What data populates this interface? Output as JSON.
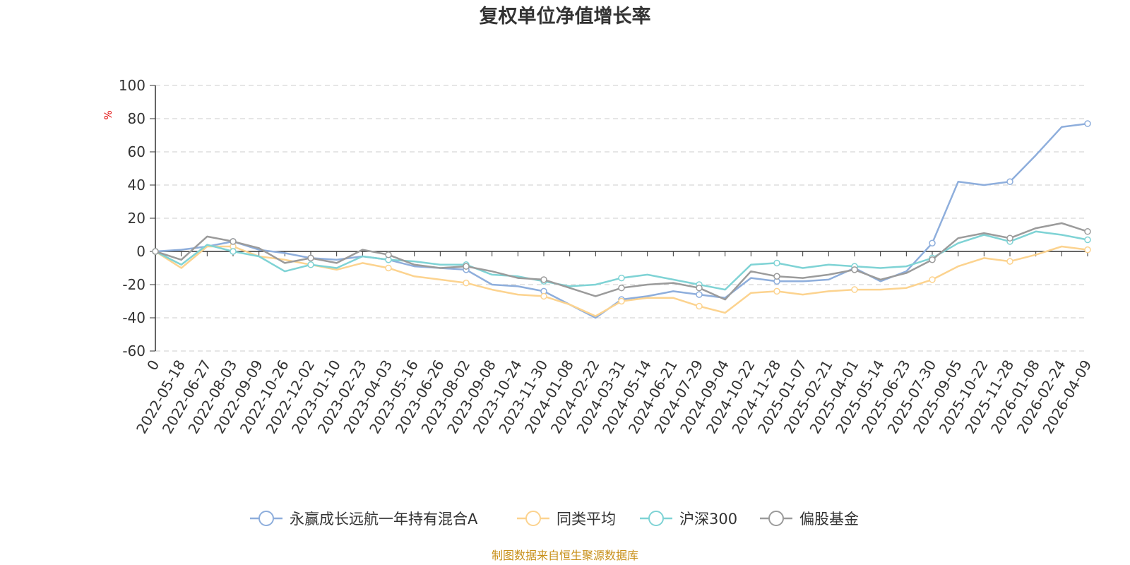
{
  "chart_data": {
    "type": "line",
    "title": "复权单位净值增长率",
    "ylabel": "%",
    "ylim": [
      -60,
      100
    ],
    "yticks": [
      "100",
      "80",
      "60",
      "40",
      "20",
      "0",
      "-20",
      "-40",
      "-60"
    ],
    "grid": true,
    "legend_position": "bottom",
    "x_labels": [
      "0",
      "2022-05-18",
      "2022-06-27",
      "2022-08-03",
      "2022-09-09",
      "2022-10-26",
      "2022-12-02",
      "2023-01-10",
      "2023-02-23",
      "2023-04-03",
      "2023-05-16",
      "2023-06-26",
      "2023-08-02",
      "2023-09-08",
      "2023-10-24",
      "2023-11-30",
      "2024-01-08",
      "2024-02-22",
      "2024-03-31",
      "2024-05-14",
      "2024-06-21",
      "2024-07-29",
      "2024-09-04",
      "2024-10-22",
      "2024-11-28",
      "2025-01-07",
      "2025-02-21",
      "2025-04-01",
      "2025-05-14",
      "2025-06-23",
      "2025-07-30",
      "2025-09-05",
      "2025-10-22",
      "2025-11-28",
      "2026-01-08",
      "2026-02-24",
      "2026-04-09"
    ],
    "series": [
      {
        "name": "永赢成长远航一年持有混合A",
        "color": "#8eaedc",
        "values": [
          0,
          1,
          3,
          6,
          1,
          -1,
          -4,
          -5,
          -3,
          -5,
          -9,
          -10,
          -11,
          -20,
          -21,
          -24,
          -32,
          -40,
          -29,
          -27,
          -24,
          -26,
          -28,
          -16,
          -18,
          -18,
          -17,
          -10,
          -18,
          -12,
          5,
          42,
          40,
          42,
          58,
          75,
          77
        ]
      },
      {
        "name": "同类平均",
        "color": "#fcd38f",
        "values": [
          0,
          -10,
          3,
          3,
          -3,
          -5,
          -8,
          -11,
          -7,
          -10,
          -15,
          -17,
          -19,
          -23,
          -26,
          -27,
          -32,
          -39,
          -30,
          -28,
          -28,
          -33,
          -37,
          -25,
          -24,
          -26,
          -24,
          -23,
          -23,
          -22,
          -17,
          -9,
          -4,
          -6,
          -2,
          3,
          1
        ]
      },
      {
        "name": "沪深300",
        "color": "#7fd3d5",
        "values": [
          0,
          -8,
          4,
          0,
          -3,
          -12,
          -8,
          -10,
          -3,
          -5,
          -6,
          -8,
          -8,
          -14,
          -15,
          -18,
          -21,
          -20,
          -16,
          -14,
          -17,
          -20,
          -23,
          -8,
          -7,
          -10,
          -8,
          -9,
          -10,
          -9,
          -4,
          5,
          10,
          6,
          12,
          10,
          7
        ]
      },
      {
        "name": "偏股基金",
        "color": "#9b9b9b",
        "values": [
          0,
          -5,
          9,
          6,
          2,
          -7,
          -4,
          -7,
          1,
          -2,
          -8,
          -10,
          -9,
          -12,
          -16,
          -17,
          -22,
          -27,
          -22,
          -20,
          -19,
          -22,
          -29,
          -12,
          -15,
          -16,
          -14,
          -11,
          -17,
          -13,
          -5,
          8,
          11,
          8,
          14,
          17,
          12
        ]
      }
    ]
  },
  "footer": {
    "source": "制图数据来自恒生聚源数据库"
  }
}
